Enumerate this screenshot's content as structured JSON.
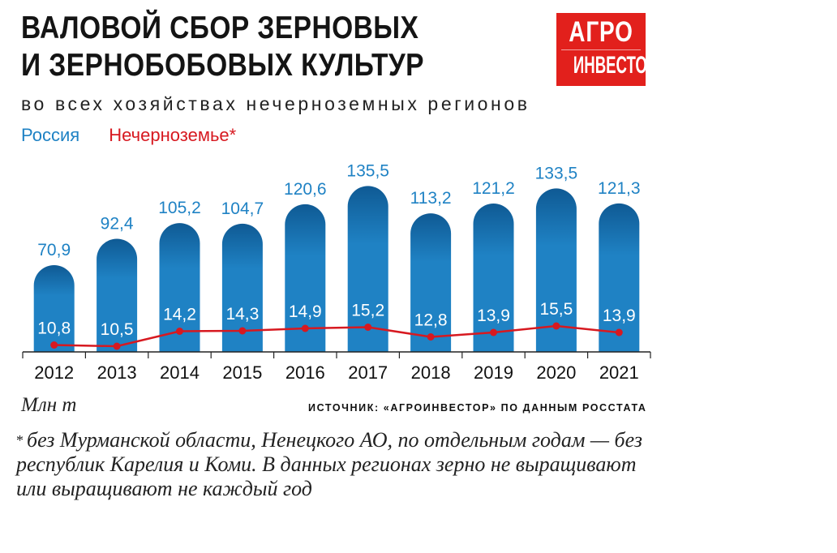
{
  "header": {
    "title_line1": "ВАЛОВОЙ СБОР ЗЕРНОВЫХ",
    "title_line2": "И ЗЕРНОБОБОВЫХ КУЛЬТУР",
    "subtitle": "во всех хозяйствах нечерноземных регионов"
  },
  "logo": {
    "line1": "АГРО",
    "line2": "ИНВЕСТОР"
  },
  "legend": {
    "russia": "Россия",
    "nonchernozem": "Нечерноземье*"
  },
  "colors": {
    "russia_bar": "#1f82c4",
    "russia_bar_top": "#0f5a94",
    "nonchernozem_line": "#d71920"
  },
  "footer": {
    "unit": "Млн т",
    "source": "ИСТОЧНИК: «АГРОИНВЕСТОР» ПО ДАННЫМ РОССТАТА",
    "footnote_star": "*",
    "footnote": "без Мурманской области, Ненецкого АО, по отдельным годам — без республик Карелия и Коми. В данных регионах зерно не выращивают или выращивают не каждый год"
  },
  "chart_data": {
    "type": "bar",
    "title": "ВАЛОВОЙ СБОР ЗЕРНОВЫХ И ЗЕРНОБОБОВЫХ КУЛЬТУР",
    "subtitle": "во всех хозяйствах нечерноземных регионов",
    "ylabel": "Млн т",
    "ylim": [
      0,
      140
    ],
    "grid": false,
    "legend": "top-left",
    "categories": [
      "2012",
      "2013",
      "2014",
      "2015",
      "2016",
      "2017",
      "2018",
      "2019",
      "2020",
      "2021"
    ],
    "series": [
      {
        "name": "Россия",
        "type": "bar",
        "values": [
          70.9,
          92.4,
          105.2,
          104.7,
          120.6,
          135.5,
          113.2,
          121.2,
          133.5,
          121.3
        ],
        "labels": [
          "70,9",
          "92,4",
          "105,2",
          "104,7",
          "120,6",
          "135,5",
          "113,2",
          "121,2",
          "133,5",
          "121,3"
        ]
      },
      {
        "name": "Нечерноземье*",
        "type": "line",
        "values": [
          10.8,
          10.5,
          14.2,
          14.3,
          14.9,
          15.2,
          12.8,
          13.9,
          15.5,
          13.9
        ],
        "labels": [
          "10,8",
          "10,5",
          "14,2",
          "14,3",
          "14,9",
          "15,2",
          "12,8",
          "13,9",
          "15,5",
          "13,9"
        ]
      }
    ]
  }
}
